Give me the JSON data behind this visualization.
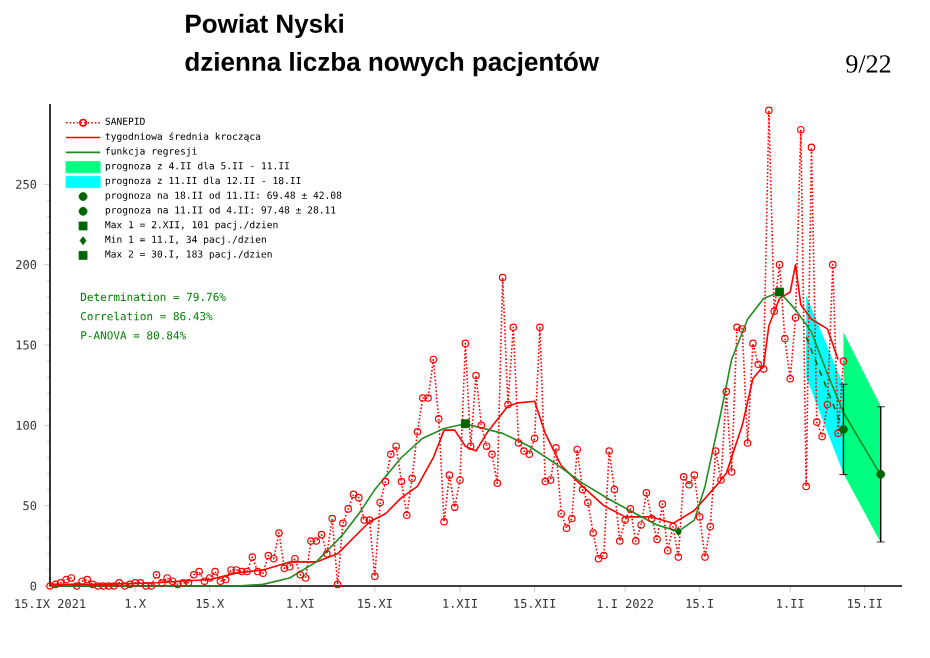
{
  "chart_data": {
    "type": "line",
    "title": "Powiat Nyski",
    "subtitle": "dzienna liczba nowych pacjentów",
    "xlim": [
      "2021-09-15",
      "2022-02-22"
    ],
    "ylim": [
      0,
      300
    ],
    "xticks": [
      {
        "value": "2021-09-15",
        "label": "15.IX 2021"
      },
      {
        "value": "2021-10-01",
        "label": "1.X"
      },
      {
        "value": "2021-10-15",
        "label": "15.X"
      },
      {
        "value": "2021-11-01",
        "label": "1.XI"
      },
      {
        "value": "2021-11-15",
        "label": "15.XI"
      },
      {
        "value": "2021-12-01",
        "label": "1.XII"
      },
      {
        "value": "2021-12-15",
        "label": "15.XII"
      },
      {
        "value": "2022-01-01",
        "label": "1.I 2022"
      },
      {
        "value": "2022-01-15",
        "label": "15.I"
      },
      {
        "value": "2022-02-01",
        "label": "1.II"
      },
      {
        "value": "2022-02-15",
        "label": "15.II"
      }
    ],
    "yticks": [
      0,
      50,
      100,
      150,
      200,
      250
    ],
    "legend": "top left",
    "series": [
      {
        "name": "SANEPID",
        "type": "line",
        "color": "#ff0000",
        "line_style": "dotted",
        "marker": "circle",
        "x": [
          "2021-09-15",
          "2021-09-16",
          "2021-09-17",
          "2021-09-18",
          "2021-09-19",
          "2021-09-20",
          "2021-09-21",
          "2021-09-22",
          "2021-09-23",
          "2021-09-24",
          "2021-09-25",
          "2021-09-26",
          "2021-09-27",
          "2021-09-28",
          "2021-09-29",
          "2021-09-30",
          "2021-10-01",
          "2021-10-02",
          "2021-10-03",
          "2021-10-04",
          "2021-10-05",
          "2021-10-06",
          "2021-10-07",
          "2021-10-08",
          "2021-10-09",
          "2021-10-10",
          "2021-10-11",
          "2021-10-12",
          "2021-10-13",
          "2021-10-14",
          "2021-10-15",
          "2021-10-16",
          "2021-10-17",
          "2021-10-18",
          "2021-10-19",
          "2021-10-20",
          "2021-10-21",
          "2021-10-22",
          "2021-10-23",
          "2021-10-24",
          "2021-10-25",
          "2021-10-26",
          "2021-10-27",
          "2021-10-28",
          "2021-10-29",
          "2021-10-30",
          "2021-10-31",
          "2021-11-01",
          "2021-11-02",
          "2021-11-03",
          "2021-11-04",
          "2021-11-05",
          "2021-11-06",
          "2021-11-07",
          "2021-11-08",
          "2021-11-09",
          "2021-11-10",
          "2021-11-11",
          "2021-11-12",
          "2021-11-13",
          "2021-11-14",
          "2021-11-15",
          "2021-11-16",
          "2021-11-17",
          "2021-11-18",
          "2021-11-19",
          "2021-11-20",
          "2021-11-21",
          "2021-11-22",
          "2021-11-23",
          "2021-11-24",
          "2021-11-25",
          "2021-11-26",
          "2021-11-27",
          "2021-11-28",
          "2021-11-29",
          "2021-11-30",
          "2021-12-01",
          "2021-12-02",
          "2021-12-03",
          "2021-12-04",
          "2021-12-05",
          "2021-12-06",
          "2021-12-07",
          "2021-12-08",
          "2021-12-09",
          "2021-12-10",
          "2021-12-11",
          "2021-12-12",
          "2021-12-13",
          "2021-12-14",
          "2021-12-15",
          "2021-12-16",
          "2021-12-17",
          "2021-12-18",
          "2021-12-19",
          "2021-12-20",
          "2021-12-21",
          "2021-12-22",
          "2021-12-23",
          "2021-12-24",
          "2021-12-25",
          "2021-12-26",
          "2021-12-27",
          "2021-12-28",
          "2021-12-29",
          "2021-12-30",
          "2021-12-31",
          "2022-01-01",
          "2022-01-02",
          "2022-01-03",
          "2022-01-04",
          "2022-01-05",
          "2022-01-06",
          "2022-01-07",
          "2022-01-08",
          "2022-01-09",
          "2022-01-10",
          "2022-01-11",
          "2022-01-12",
          "2022-01-13",
          "2022-01-14",
          "2022-01-15",
          "2022-01-16",
          "2022-01-17",
          "2022-01-18",
          "2022-01-19",
          "2022-01-20",
          "2022-01-21",
          "2022-01-22",
          "2022-01-23",
          "2022-01-24",
          "2022-01-25",
          "2022-01-26",
          "2022-01-27",
          "2022-01-28",
          "2022-01-29",
          "2022-01-30",
          "2022-01-31",
          "2022-02-01",
          "2022-02-02",
          "2022-02-03",
          "2022-02-04",
          "2022-02-05",
          "2022-02-06",
          "2022-02-07",
          "2022-02-08",
          "2022-02-09",
          "2022-02-10",
          "2022-02-11"
        ],
        "values": [
          0,
          1,
          2,
          4,
          5,
          0,
          3,
          4,
          1,
          0,
          0,
          0,
          0,
          2,
          0,
          1,
          2,
          2,
          0,
          0,
          7,
          2,
          5,
          3,
          1,
          2,
          2,
          7,
          9,
          3,
          5,
          9,
          3,
          4,
          10,
          10,
          9,
          9,
          18,
          9,
          8,
          19,
          17,
          33,
          11,
          12,
          17,
          7,
          5,
          28,
          28,
          32,
          20,
          42,
          1,
          39,
          48,
          57,
          55,
          41,
          41,
          6,
          52,
          65,
          82,
          87,
          65,
          44,
          67,
          96,
          117,
          117,
          141,
          104,
          40,
          69,
          49,
          66,
          151,
          87,
          131,
          100,
          87,
          82,
          64,
          192,
          113,
          161,
          89,
          84,
          82,
          92,
          161,
          65,
          66,
          86,
          45,
          36,
          42,
          85,
          60,
          52,
          33,
          17,
          19,
          84,
          60,
          28,
          41,
          48,
          28,
          38,
          58,
          42,
          29,
          51,
          22,
          37,
          18,
          68,
          63,
          69,
          43,
          18,
          37,
          84,
          66,
          121,
          71,
          161,
          160,
          89,
          151,
          138,
          135,
          296,
          171,
          200,
          154,
          129,
          167,
          284,
          62,
          273,
          102,
          93,
          113,
          200,
          95,
          140
        ]
      },
      {
        "name": "tygodniowa średnia krocząca",
        "type": "line",
        "color": "#ff0000",
        "line_style": "solid",
        "x": [
          "2021-09-15",
          "2021-09-25",
          "2021-10-05",
          "2021-10-15",
          "2021-10-20",
          "2021-10-25",
          "2021-10-30",
          "2021-11-04",
          "2021-11-08",
          "2021-11-11",
          "2021-11-14",
          "2021-11-17",
          "2021-11-20",
          "2021-11-23",
          "2021-11-26",
          "2021-11-28",
          "2021-11-30",
          "2021-12-02",
          "2021-12-04",
          "2021-12-06",
          "2021-12-10",
          "2021-12-12",
          "2021-12-15",
          "2021-12-17",
          "2021-12-20",
          "2021-12-24",
          "2021-12-28",
          "2022-01-01",
          "2022-01-06",
          "2022-01-10",
          "2022-01-14",
          "2022-01-18",
          "2022-01-20",
          "2022-01-23",
          "2022-01-25",
          "2022-01-27",
          "2022-01-28",
          "2022-01-30",
          "2022-02-01",
          "2022-02-02",
          "2022-02-03",
          "2022-02-05",
          "2022-02-08",
          "2022-02-10"
        ],
        "values": [
          1,
          1,
          2,
          4,
          8,
          10,
          15,
          15,
          20,
          30,
          40,
          45,
          55,
          62,
          80,
          97,
          97,
          87,
          84,
          95,
          112,
          114,
          115,
          95,
          75,
          62,
          50,
          43,
          43,
          39,
          47,
          62,
          70,
          100,
          129,
          137,
          162,
          179,
          183,
          200,
          175,
          166,
          160,
          141
        ]
      },
      {
        "name": "funkcja regresji",
        "type": "line",
        "color": "#228b22",
        "line_style": "solid",
        "x": [
          "2021-09-15",
          "2021-10-20",
          "2021-10-25",
          "2021-10-30",
          "2021-11-04",
          "2021-11-09",
          "2021-11-12",
          "2021-11-15",
          "2021-11-20",
          "2021-11-24",
          "2021-11-28",
          "2021-12-02",
          "2021-12-09",
          "2021-12-14",
          "2021-12-19",
          "2021-12-24",
          "2021-12-29",
          "2022-01-03",
          "2022-01-07",
          "2022-01-11",
          "2022-01-14",
          "2022-01-16",
          "2022-01-19",
          "2022-01-21",
          "2022-01-24",
          "2022-01-27",
          "2022-01-30",
          "2022-02-02",
          "2022-02-05",
          "2022-02-08",
          "2022-02-11",
          "2022-02-18"
        ],
        "values": [
          0,
          0,
          1,
          5,
          15,
          32,
          45,
          60,
          80,
          92,
          98,
          101,
          95,
          87,
          76,
          64,
          54,
          45,
          38,
          34,
          41,
          62,
          108,
          141,
          166,
          179,
          183,
          172,
          158,
          132,
          108,
          69
        ]
      },
      {
        "name": "prognoza z 4.II dla 5.II - 11.II",
        "type": "line",
        "color": "#00ff80",
        "x": [
          "2022-02-11",
          "2022-02-18"
        ],
        "values": [
          null,
          null
        ],
        "lower": [
          70,
          27
        ],
        "upper": [
          158,
          112
        ]
      },
      {
        "name": "prognoza z 11.II dla 12.II - 18.II",
        "type": "line",
        "color": "#00ffff",
        "x": [
          "2022-02-04",
          "2022-02-11"
        ],
        "values": [
          null,
          null
        ],
        "lower": [
          130,
          70
        ],
        "upper": [
          181,
          125
        ]
      },
      {
        "type": "line",
        "color": "#006400",
        "line_style": "dashed",
        "x": [
          "2022-02-04",
          "2022-02-11"
        ],
        "values": [
          155,
          97
        ]
      },
      {
        "name": "prognoza na 18.II od 11.II: 69.48 ± 42.08",
        "type": "scatter",
        "color": "#006400",
        "marker": "circle",
        "x": [
          "2022-02-18"
        ],
        "values": [
          69.48
        ],
        "errors": [
          42.08
        ]
      },
      {
        "name": "prognoza na 11.II od 4.II: 97.48 ± 28.11",
        "type": "scatter",
        "color": "#006400",
        "marker": "circle",
        "x": [
          "2022-02-11"
        ],
        "values": [
          97.48
        ],
        "errors": [
          28.11
        ]
      },
      {
        "name": "Max 1 = 2.XII, 101 pacj./dzien",
        "type": "scatter",
        "color": "#006400",
        "marker": "square",
        "x": [
          "2021-12-02"
        ],
        "values": [
          101
        ]
      },
      {
        "name": "Min 1 = 11.I, 34 pacj./dzien",
        "type": "scatter",
        "color": "#006400",
        "marker": "diamond",
        "x": [
          "2022-01-11"
        ],
        "values": [
          34
        ]
      },
      {
        "name": "Max 2 = 30.I, 183 pacj./dzien",
        "type": "scatter",
        "color": "#006400",
        "marker": "square",
        "x": [
          "2022-01-30"
        ],
        "values": [
          183
        ]
      }
    ],
    "annotations": [
      "Determination = 79.76%",
      "Correlation = 86.43%",
      "P-ANOVA = 80.84%",
      "9/22"
    ]
  }
}
